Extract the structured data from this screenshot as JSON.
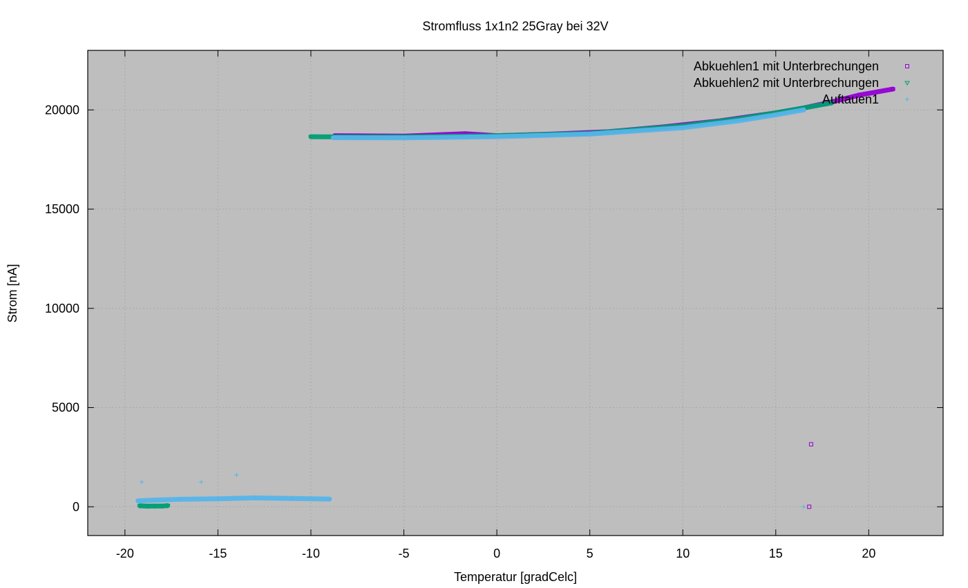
{
  "chart_data": {
    "type": "scatter",
    "title": "Stromfluss 1x1n2 25Gray bei 32V",
    "xlabel": "Temperatur [gradCelc]",
    "ylabel": "Strom [nA]",
    "xlim": [
      -22,
      24
    ],
    "ylim": [
      -1450,
      23000
    ],
    "x_ticks": [
      -20,
      -15,
      -10,
      -5,
      0,
      5,
      10,
      15,
      20
    ],
    "y_ticks": [
      0,
      5000,
      10000,
      15000,
      20000
    ],
    "grid": true,
    "legend_position": "top-right",
    "series": [
      {
        "name": "Abkuehlen1 mit Unterbrechungen",
        "color": "#9400d3",
        "marker": "square",
        "segments": [
          {
            "x": [
              -8.7,
              -5,
              -1.7,
              0,
              3,
              6,
              9,
              12,
              15,
              16.5,
              18,
              19.5,
              21.3
            ],
            "y": [
              18700,
              18680,
              18800,
              18700,
              18780,
              18900,
              19150,
              19450,
              19850,
              20100,
              20400,
              20750,
              21050
            ]
          }
        ],
        "points": [
          {
            "x": 16.9,
            "y": 3150
          },
          {
            "x": 16.8,
            "y": 0
          }
        ]
      },
      {
        "name": "Abkuehlen2 mit Unterbrechungen",
        "color": "#009e73",
        "marker": "triangle-down",
        "segments": [
          {
            "x": [
              -10,
              -8,
              -5,
              0,
              5,
              10,
              13,
              15,
              16.5,
              18
            ],
            "y": [
              18650,
              18640,
              18640,
              18700,
              18820,
              19200,
              19550,
              19850,
              20100,
              20350
            ]
          },
          {
            "x": [
              -19.2,
              -18.8,
              -18.4,
              -18,
              -17.7
            ],
            "y": [
              50,
              30,
              40,
              35,
              60
            ]
          }
        ],
        "points": []
      },
      {
        "name": "Auftauen1",
        "color": "#56b4e9",
        "marker": "plus",
        "segments": [
          {
            "x": [
              -8.8,
              -5,
              0,
              5,
              10,
              13,
              15,
              16.5
            ],
            "y": [
              18600,
              18590,
              18650,
              18780,
              19100,
              19450,
              19750,
              20000
            ]
          },
          {
            "x": [
              -19.3,
              -18.5,
              -17,
              -15,
              -13,
              -11,
              -9
            ],
            "y": [
              300,
              330,
              380,
              400,
              450,
              420,
              390
            ]
          }
        ],
        "points": [
          {
            "x": -19.1,
            "y": 1250
          },
          {
            "x": -15.9,
            "y": 1250
          },
          {
            "x": -14,
            "y": 1600
          },
          {
            "x": 16.5,
            "y": 0
          }
        ]
      }
    ]
  }
}
